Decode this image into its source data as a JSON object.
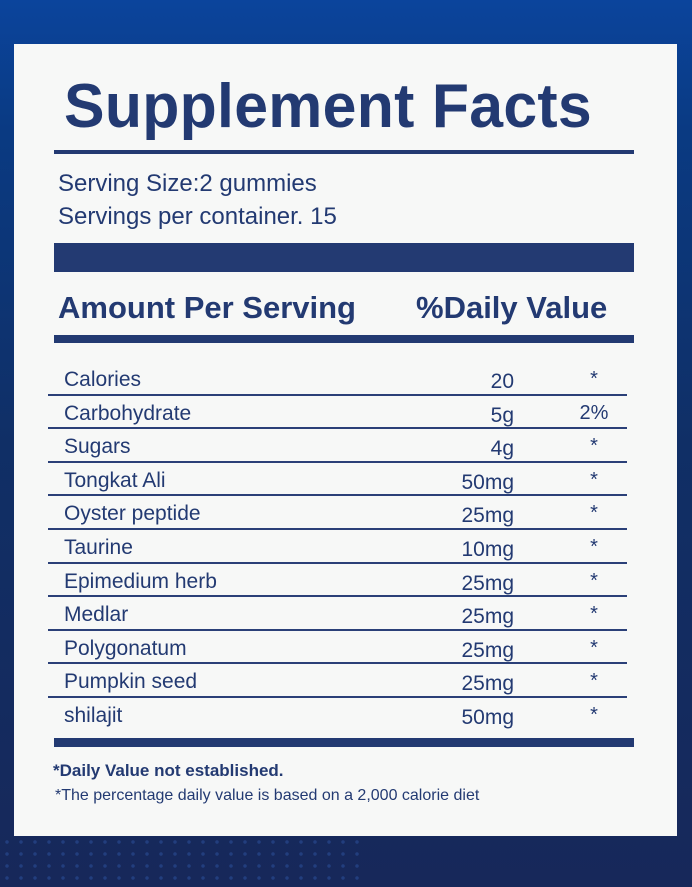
{
  "title": "Supplement Facts",
  "serving_size": "Serving Size:2 gummies",
  "servings_per_container": "Servings per container. 15",
  "header": {
    "amount": "Amount Per Serving",
    "daily_value": "%Daily Value"
  },
  "rows": [
    {
      "name": "Calories",
      "amount": "20",
      "dv": "*"
    },
    {
      "name": "Carbohydrate",
      "amount": "5g",
      "dv": "2%"
    },
    {
      "name": "Sugars",
      "amount": "4g",
      "dv": "*"
    },
    {
      "name": "Tongkat Ali",
      "amount": "50mg",
      "dv": "*"
    },
    {
      "name": "Oyster peptide",
      "amount": "25mg",
      "dv": "*"
    },
    {
      "name": "Taurine",
      "amount": "10mg",
      "dv": "*"
    },
    {
      "name": "Epimedium herb",
      "amount": "25mg",
      "dv": "*"
    },
    {
      "name": "Medlar",
      "amount": "25mg",
      "dv": "*"
    },
    {
      "name": "Polygonatum",
      "amount": "25mg",
      "dv": "*"
    },
    {
      "name": "Pumpkin seed",
      "amount": "25mg",
      "dv": "*"
    },
    {
      "name": "shilajit",
      "amount": "50mg",
      "dv": "*"
    }
  ],
  "footnotes": [
    "*Daily Value not established.",
    "*The percentage daily value is based on a 2,000 calorie diet"
  ],
  "colors": {
    "text": "#233a72",
    "panel": "#f7f8f7",
    "background": "#0b449c"
  }
}
